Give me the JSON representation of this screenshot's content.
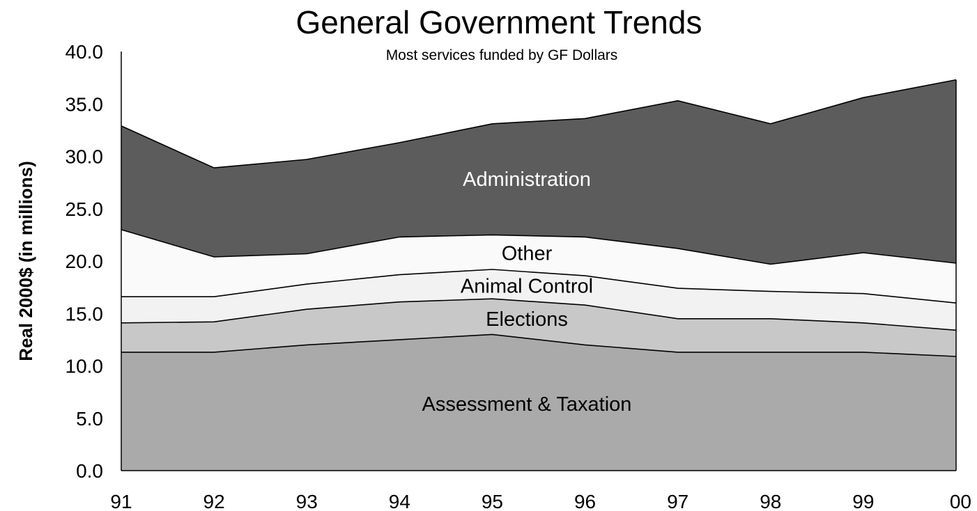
{
  "chart_data": {
    "type": "area",
    "stacked": true,
    "title": "General Government Trends",
    "subtitle": "Most services funded by GF Dollars",
    "xlabel": "",
    "ylabel": "Real 2000$ (in millions)",
    "ylim": [
      0,
      40
    ],
    "yticks": [
      "0.0",
      "5.0",
      "10.0",
      "15.0",
      "20.0",
      "25.0",
      "30.0",
      "35.0",
      "40.0"
    ],
    "categories": [
      "91",
      "92",
      "93",
      "94",
      "95",
      "96",
      "97",
      "98",
      "99",
      "00"
    ],
    "grid": false,
    "legend": "none",
    "series": [
      {
        "name": "Assessment & Taxation",
        "color": "#aaaaaa",
        "label_color": "#000000",
        "values": [
          11.3,
          11.3,
          12.0,
          12.5,
          13.0,
          12.0,
          11.3,
          11.3,
          11.3,
          10.9
        ]
      },
      {
        "name": "Elections",
        "color": "#c8c8c8",
        "label_color": "#000000",
        "values": [
          2.8,
          2.9,
          3.4,
          3.6,
          3.4,
          3.8,
          3.2,
          3.2,
          2.8,
          2.5
        ]
      },
      {
        "name": "Animal Control",
        "color": "#f2f2f2",
        "label_color": "#000000",
        "values": [
          2.5,
          2.4,
          2.4,
          2.6,
          2.8,
          2.8,
          2.9,
          2.6,
          2.8,
          2.6
        ]
      },
      {
        "name": "Other",
        "color": "#fafafa",
        "label_color": "#000000",
        "values": [
          6.4,
          3.8,
          2.9,
          3.6,
          3.3,
          3.7,
          3.8,
          2.6,
          3.9,
          3.8
        ]
      },
      {
        "name": "Administration",
        "color": "#5c5c5c",
        "label_color": "#ffffff",
        "values": [
          9.9,
          8.5,
          9.0,
          9.0,
          10.6,
          11.3,
          14.1,
          13.4,
          14.8,
          17.5
        ]
      }
    ]
  }
}
